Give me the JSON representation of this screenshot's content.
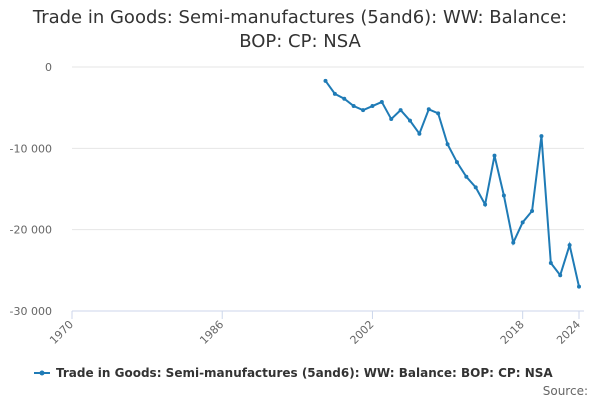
{
  "chart_data": {
    "type": "line",
    "title": "Trade in Goods: Semi-manufactures (5and6): WW: Balance: BOP: CP: NSA",
    "source": "Source:",
    "x": [
      1997,
      1998,
      1999,
      2000,
      2001,
      2002,
      2003,
      2004,
      2005,
      2006,
      2007,
      2008,
      2009,
      2010,
      2011,
      2012,
      2013,
      2014,
      2015,
      2016,
      2017,
      2018,
      2019,
      2020,
      2021,
      2022,
      2023,
      2024
    ],
    "series": [
      {
        "name": "Trade in Goods: Semi-manufactures (5and6): WW: Balance: BOP: CP: NSA",
        "color": "#1f7bb6",
        "values": [
          -1700,
          -3300,
          -3900,
          -4800,
          -5300,
          -4800,
          -4300,
          -6400,
          -5300,
          -6600,
          -8200,
          -5200,
          -5700,
          -9500,
          -11700,
          -13500,
          -14800,
          -16900,
          -10900,
          -15800,
          -21600,
          -19100,
          -17700,
          -8500,
          -24100,
          -25600,
          -21900,
          -27000
        ]
      }
    ],
    "xlim": [
      1970,
      2024
    ],
    "xticks": [
      1970,
      1986,
      2002,
      2018,
      2024
    ],
    "ylim": [
      -30000,
      0
    ],
    "yticks": [
      {
        "value": 0,
        "label": "0"
      },
      {
        "value": -10000,
        "label": "-10 000"
      },
      {
        "value": -20000,
        "label": "-20 000"
      },
      {
        "value": -30000,
        "label": "-30 000"
      }
    ],
    "grid": true
  }
}
